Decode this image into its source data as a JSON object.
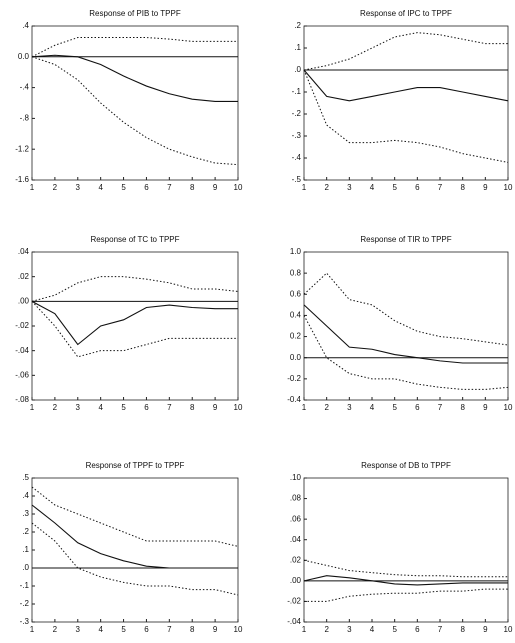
{
  "chart_data": [
    {
      "type": "line",
      "title": "Response of PIB to TPPF",
      "x": [
        1,
        2,
        3,
        4,
        5,
        6,
        7,
        8,
        9,
        10
      ],
      "xlim": [
        1,
        10
      ],
      "xticks": [
        1,
        2,
        3,
        4,
        5,
        6,
        7,
        8,
        9,
        10
      ],
      "ylim": [
        -1.6,
        0.4
      ],
      "yticks": [
        {
          "value": -1.6,
          "label": "-1.6"
        },
        {
          "value": -1.2,
          "label": "-1.2"
        },
        {
          "value": -0.8,
          "label": "-.8"
        },
        {
          "value": -0.4,
          "label": "-.4"
        },
        {
          "value": 0,
          "label": "0.0"
        },
        {
          "value": 0.4,
          "label": ".4"
        }
      ],
      "series": [
        {
          "color": "#111",
          "style": "solid",
          "values": [
            0,
            0.02,
            0,
            -0.1,
            -0.25,
            -0.38,
            -0.48,
            -0.55,
            -0.58,
            -0.58
          ]
        },
        {
          "color": "#111",
          "style": "dotted",
          "values": [
            0,
            0.15,
            0.25,
            0.25,
            0.25,
            0.25,
            0.23,
            0.2,
            0.2,
            0.2
          ]
        },
        {
          "color": "#111",
          "style": "dotted",
          "values": [
            0,
            -0.1,
            -0.3,
            -0.6,
            -0.85,
            -1.05,
            -1.2,
            -1.3,
            -1.38,
            -1.4
          ]
        }
      ]
    },
    {
      "type": "line",
      "title": "Response of IPC to TPPF",
      "x": [
        1,
        2,
        3,
        4,
        5,
        6,
        7,
        8,
        9,
        10
      ],
      "xlim": [
        1,
        10
      ],
      "xticks": [
        1,
        2,
        3,
        4,
        5,
        6,
        7,
        8,
        9,
        10
      ],
      "ylim": [
        -0.5,
        0.2
      ],
      "yticks": [
        {
          "value": -0.5,
          "label": "-.5"
        },
        {
          "value": -0.4,
          "label": "-.4"
        },
        {
          "value": -0.3,
          "label": "-.3"
        },
        {
          "value": -0.2,
          "label": "-.2"
        },
        {
          "value": -0.1,
          "label": "-.1"
        },
        {
          "value": 0,
          "label": ".0"
        },
        {
          "value": 0.1,
          "label": ".1"
        },
        {
          "value": 0.2,
          "label": ".2"
        }
      ],
      "series": [
        {
          "color": "#111",
          "style": "solid",
          "values": [
            0,
            -0.12,
            -0.14,
            -0.12,
            -0.1,
            -0.08,
            -0.08,
            -0.1,
            -0.12,
            -0.14
          ]
        },
        {
          "color": "#111",
          "style": "dotted",
          "values": [
            0,
            0.02,
            0.05,
            0.1,
            0.15,
            0.17,
            0.16,
            0.14,
            0.12,
            0.12
          ]
        },
        {
          "color": "#111",
          "style": "dotted",
          "values": [
            0,
            -0.25,
            -0.33,
            -0.33,
            -0.32,
            -0.33,
            -0.35,
            -0.38,
            -0.4,
            -0.42
          ]
        }
      ]
    },
    {
      "type": "line",
      "title": "Response of TC to TPPF",
      "x": [
        1,
        2,
        3,
        4,
        5,
        6,
        7,
        8,
        9,
        10
      ],
      "xlim": [
        1,
        10
      ],
      "xticks": [
        1,
        2,
        3,
        4,
        5,
        6,
        7,
        8,
        9,
        10
      ],
      "ylim": [
        -0.08,
        0.04
      ],
      "yticks": [
        {
          "value": -0.08,
          "label": "-.08"
        },
        {
          "value": -0.06,
          "label": "-.06"
        },
        {
          "value": -0.04,
          "label": "-.04"
        },
        {
          "value": -0.02,
          "label": "-.02"
        },
        {
          "value": 0,
          "label": ".00"
        },
        {
          "value": 0.02,
          "label": ".02"
        },
        {
          "value": 0.04,
          "label": ".04"
        }
      ],
      "series": [
        {
          "color": "#111",
          "style": "solid",
          "values": [
            0,
            -0.01,
            -0.035,
            -0.02,
            -0.015,
            -0.005,
            -0.003,
            -0.005,
            -0.006,
            -0.006
          ]
        },
        {
          "color": "#111",
          "style": "dotted",
          "values": [
            0,
            0.005,
            0.015,
            0.02,
            0.02,
            0.018,
            0.015,
            0.01,
            0.01,
            0.008
          ]
        },
        {
          "color": "#111",
          "style": "dotted",
          "values": [
            0,
            -0.02,
            -0.045,
            -0.04,
            -0.04,
            -0.035,
            -0.03,
            -0.03,
            -0.03,
            -0.03
          ]
        }
      ]
    },
    {
      "type": "line",
      "title": "Response of TIR to TPPF",
      "x": [
        1,
        2,
        3,
        4,
        5,
        6,
        7,
        8,
        9,
        10
      ],
      "xlim": [
        1,
        10
      ],
      "xticks": [
        1,
        2,
        3,
        4,
        5,
        6,
        7,
        8,
        9,
        10
      ],
      "ylim": [
        -0.4,
        1.0
      ],
      "yticks": [
        {
          "value": -0.4,
          "label": "-0.4"
        },
        {
          "value": -0.2,
          "label": "-0.2"
        },
        {
          "value": 0,
          "label": "0.0"
        },
        {
          "value": 0.2,
          "label": "0.2"
        },
        {
          "value": 0.4,
          "label": "0.4"
        },
        {
          "value": 0.6,
          "label": "0.6"
        },
        {
          "value": 0.8,
          "label": "0.8"
        },
        {
          "value": 1,
          "label": "1.0"
        }
      ],
      "series": [
        {
          "color": "#111",
          "style": "solid",
          "values": [
            0.5,
            0.3,
            0.1,
            0.08,
            0.03,
            0,
            -0.03,
            -0.05,
            -0.05,
            -0.05
          ]
        },
        {
          "color": "#111",
          "style": "dotted",
          "values": [
            0.6,
            0.8,
            0.55,
            0.5,
            0.35,
            0.25,
            0.2,
            0.18,
            0.15,
            0.12
          ]
        },
        {
          "color": "#111",
          "style": "dotted",
          "values": [
            0.4,
            0,
            -0.15,
            -0.2,
            -0.2,
            -0.25,
            -0.28,
            -0.3,
            -0.3,
            -0.28
          ]
        }
      ]
    },
    {
      "type": "line",
      "title": "Response of TPPF to TPPF",
      "x": [
        1,
        2,
        3,
        4,
        5,
        6,
        7,
        8,
        9,
        10
      ],
      "xlim": [
        1,
        10
      ],
      "xticks": [
        1,
        2,
        3,
        4,
        5,
        6,
        7,
        8,
        9,
        10
      ],
      "ylim": [
        -0.3,
        0.5
      ],
      "yticks": [
        {
          "value": -0.3,
          "label": "-.3"
        },
        {
          "value": -0.2,
          "label": "-.2"
        },
        {
          "value": -0.1,
          "label": "-.1"
        },
        {
          "value": 0,
          "label": ".0"
        },
        {
          "value": 0.1,
          "label": ".1"
        },
        {
          "value": 0.2,
          "label": ".2"
        },
        {
          "value": 0.3,
          "label": ".3"
        },
        {
          "value": 0.4,
          "label": ".4"
        },
        {
          "value": 0.5,
          "label": ".5"
        }
      ],
      "series": [
        {
          "color": "#111",
          "style": "solid",
          "values": [
            0.35,
            0.25,
            0.14,
            0.08,
            0.04,
            0.01,
            0,
            0,
            0,
            0
          ]
        },
        {
          "color": "#111",
          "style": "dotted",
          "values": [
            0.45,
            0.35,
            0.3,
            0.25,
            0.2,
            0.15,
            0.15,
            0.15,
            0.15,
            0.12
          ]
        },
        {
          "color": "#111",
          "style": "dotted",
          "values": [
            0.25,
            0.15,
            0,
            -0.05,
            -0.08,
            -0.1,
            -0.1,
            -0.12,
            -0.12,
            -0.15
          ]
        }
      ]
    },
    {
      "type": "line",
      "title": "Response of DB to TPPF",
      "x": [
        1,
        2,
        3,
        4,
        5,
        6,
        7,
        8,
        9,
        10
      ],
      "xlim": [
        1,
        10
      ],
      "xticks": [
        1,
        2,
        3,
        4,
        5,
        6,
        7,
        8,
        9,
        10
      ],
      "ylim": [
        -0.04,
        0.1
      ],
      "yticks": [
        {
          "value": -0.04,
          "label": "-.04"
        },
        {
          "value": -0.02,
          "label": "-.02"
        },
        {
          "value": 0,
          "label": ".00"
        },
        {
          "value": 0.02,
          "label": ".02"
        },
        {
          "value": 0.04,
          "label": ".04"
        },
        {
          "value": 0.06,
          "label": ".06"
        },
        {
          "value": 0.08,
          "label": ".08"
        },
        {
          "value": 0.1,
          "label": ".10"
        }
      ],
      "series": [
        {
          "color": "#111",
          "style": "solid",
          "values": [
            0,
            0.005,
            0.003,
            0,
            -0.003,
            -0.004,
            -0.003,
            -0.002,
            -0.002,
            -0.002
          ]
        },
        {
          "color": "#111",
          "style": "dotted",
          "values": [
            0.02,
            0.015,
            0.01,
            0.008,
            0.006,
            0.005,
            0.005,
            0.004,
            0.004,
            0.004
          ]
        },
        {
          "color": "#111",
          "style": "dotted",
          "values": [
            -0.02,
            -0.02,
            -0.015,
            -0.013,
            -0.012,
            -0.012,
            -0.01,
            -0.01,
            -0.008,
            -0.008
          ]
        }
      ]
    }
  ]
}
